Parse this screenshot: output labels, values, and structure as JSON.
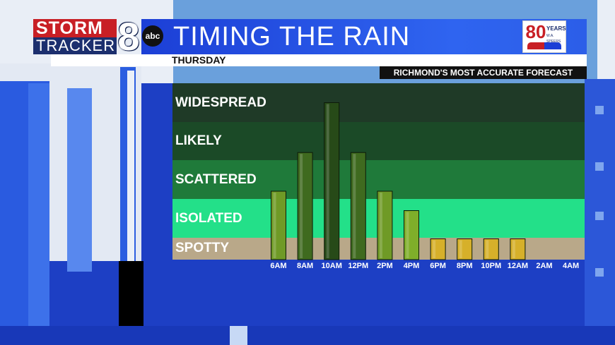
{
  "header": {
    "title": "TIMING THE RAIN",
    "subtitle": "THURSDAY",
    "tagline": "RICHMOND'S MOST ACCURATE FORECAST"
  },
  "logo": {
    "line1": "STORM",
    "line2": "TRACKER",
    "number": "8",
    "network": "abc"
  },
  "badge": {
    "number": "80",
    "word": "YEARS",
    "name": "W.A. SPEERS"
  },
  "colors": {
    "background_blue": "#1d3fc4",
    "band_widespread": "#1f3a27",
    "band_likely": "#1b4a27",
    "band_scattered": "#1f7a3a",
    "band_isolated": "#23e089",
    "band_spotty": "#b9a889",
    "bar_spotty": "#d6b02a",
    "bar_green": "#7fae2a"
  },
  "chart_data": {
    "type": "bar",
    "categories": [
      "6AM",
      "8AM",
      "10AM",
      "12PM",
      "2PM",
      "4PM",
      "6PM",
      "8PM",
      "10PM",
      "12AM",
      "2AM",
      "4AM"
    ],
    "y_categories": [
      "SPOTTY",
      "ISOLATED",
      "SCATTERED",
      "LIKELY",
      "WIDESPREAD"
    ],
    "values": [
      2.2,
      3.2,
      4.5,
      3.2,
      2.2,
      1.7,
      0.95,
      0.95,
      0.95,
      0.95,
      0,
      0
    ],
    "ylim": [
      0,
      5
    ],
    "title": "",
    "xlabel": "",
    "ylabel": "",
    "grid": false,
    "legend": "none"
  }
}
